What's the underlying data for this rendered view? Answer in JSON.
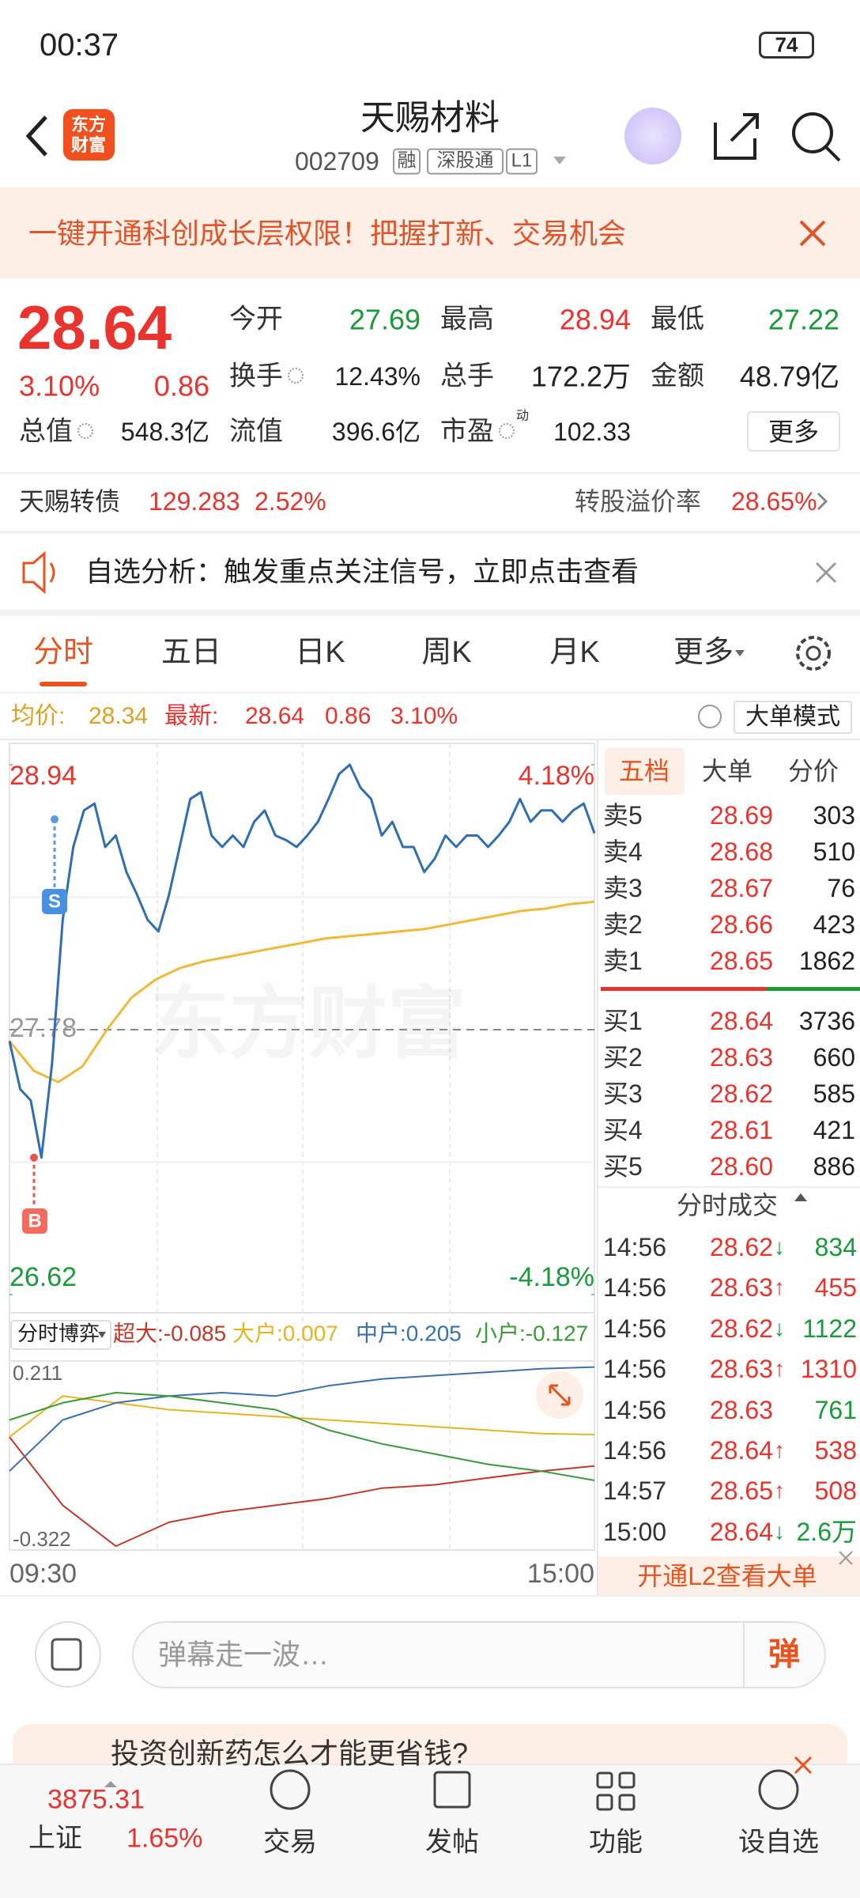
{
  "status_bar": {
    "time": "00:37",
    "battery": "74"
  },
  "header": {
    "logo": [
      "东方",
      "财富"
    ],
    "title": "天赐材料",
    "code": "002709",
    "tags": [
      "融",
      "深股通",
      "L1"
    ]
  },
  "banner": {
    "text": "一键开通科创成长层权限！把握打新、交易机会"
  },
  "quote": {
    "price": "28.64",
    "change_pct": "3.10%",
    "change": "0.86",
    "more": "更多",
    "fields": [
      {
        "label": "今开",
        "value": "27.69",
        "tone": "down"
      },
      {
        "label": "最高",
        "value": "28.94",
        "tone": "up"
      },
      {
        "label": "最低",
        "value": "27.22",
        "tone": "down"
      },
      {
        "label": "换手",
        "value": "12.43%"
      },
      {
        "label": "总手",
        "value": "172.2万"
      },
      {
        "label": "金额",
        "value": "48.79亿"
      },
      {
        "label": "总值",
        "value": "548.3亿"
      },
      {
        "label": "流值",
        "value": "396.6亿"
      },
      {
        "label": "市盈",
        "superscript": "动",
        "value": "102.33"
      }
    ]
  },
  "bond": {
    "name": "天赐转债",
    "price": "129.283",
    "change_pct": "2.52%",
    "premium_label": "转股溢价率",
    "premium": "28.65%"
  },
  "notice": {
    "text": "自选分析：触发重点关注信号，立即点击查看"
  },
  "tabs": {
    "items": [
      "分时",
      "五日",
      "日K",
      "周K",
      "月K",
      "更多"
    ],
    "active": 0
  },
  "info": {
    "mode_button": "大单模式"
  },
  "intraday": {
    "type": "line",
    "watermark": "东方财富",
    "markers": [
      "S",
      "B"
    ],
    "ylim": [
      26.62,
      28.94
    ],
    "yticks": [
      26.62,
      27.78,
      28.94
    ],
    "y2lim": [
      -4.18,
      4.18
    ],
    "y2ticks": [
      {
        "value": -4.18,
        "label": "-4.18%"
      },
      {
        "value": 4.18,
        "label": "4.18%"
      }
    ],
    "xlabels": [
      "09:30",
      "15:00"
    ],
    "series": [
      {
        "name": "均价:",
        "color": "#f0b93a",
        "value_label": "28.34",
        "values": [
          27.73,
          27.6,
          27.55,
          27.62,
          27.78,
          27.92,
          28.0,
          28.05,
          28.08,
          28.1,
          28.12,
          28.14,
          28.16,
          28.18,
          28.19,
          28.2,
          28.21,
          28.22,
          28.24,
          28.26,
          28.28,
          28.3,
          28.31,
          28.33,
          28.34
        ]
      },
      {
        "name": "最新:",
        "color": "#2f6db5",
        "value_label": "28.64",
        "values": [
          27.73,
          27.52,
          27.47,
          27.22,
          27.63,
          28.26,
          28.58,
          28.74,
          28.77,
          28.58,
          28.63,
          28.47,
          28.37,
          28.26,
          28.21,
          28.37,
          28.58,
          28.79,
          28.82,
          28.63,
          28.58,
          28.63,
          28.58,
          28.69,
          28.74,
          28.63,
          28.61,
          28.58,
          28.63,
          28.69,
          28.79,
          28.9,
          28.94,
          28.84,
          28.79,
          28.63,
          28.69,
          28.58,
          28.58,
          28.47,
          28.53,
          28.63,
          28.58,
          28.63,
          28.63,
          28.58,
          28.63,
          28.69,
          28.79,
          28.69,
          28.74,
          28.74,
          28.69,
          28.74,
          28.77,
          28.64
        ]
      }
    ]
  },
  "fund_flow": {
    "type": "line",
    "selector": "分时博弈",
    "ylim": [
      -0.322,
      0.211
    ],
    "series": [
      {
        "legend": "超大:-0.085",
        "color": "#c0392b",
        "values": [
          0.0,
          -0.2,
          -0.32,
          -0.25,
          -0.22,
          -0.2,
          -0.18,
          -0.15,
          -0.14,
          -0.12,
          -0.1,
          -0.085
        ]
      },
      {
        "legend": "大户:0.007",
        "color": "#e6b422",
        "values": [
          0.0,
          0.12,
          0.1,
          0.08,
          0.07,
          0.06,
          0.05,
          0.04,
          0.03,
          0.02,
          0.01,
          0.007
        ]
      },
      {
        "legend": "中户:0.205",
        "color": "#3a6fb0",
        "values": [
          -0.1,
          0.05,
          0.1,
          0.12,
          0.13,
          0.12,
          0.15,
          0.17,
          0.18,
          0.19,
          0.2,
          0.205
        ]
      },
      {
        "legend": "小户:-0.127",
        "color": "#3a9a3a",
        "values": [
          0.05,
          0.1,
          0.13,
          0.12,
          0.1,
          0.08,
          0.02,
          -0.02,
          -0.05,
          -0.08,
          -0.1,
          -0.127
        ]
      }
    ]
  },
  "order_book": {
    "tabs": [
      "五档",
      "大单",
      "分价"
    ],
    "active_tab": 0,
    "asks": [
      {
        "label": "卖5",
        "price": "28.69",
        "volume": "303"
      },
      {
        "label": "卖4",
        "price": "28.68",
        "volume": "510"
      },
      {
        "label": "卖3",
        "price": "28.67",
        "volume": "76"
      },
      {
        "label": "卖2",
        "price": "28.66",
        "volume": "423"
      },
      {
        "label": "卖1",
        "price": "28.65",
        "volume": "1862"
      }
    ],
    "bids": [
      {
        "label": "买1",
        "price": "28.64",
        "volume": "3736"
      },
      {
        "label": "买2",
        "price": "28.63",
        "volume": "660"
      },
      {
        "label": "买3",
        "price": "28.62",
        "volume": "585"
      },
      {
        "label": "买4",
        "price": "28.61",
        "volume": "421"
      },
      {
        "label": "买5",
        "price": "28.60",
        "volume": "886"
      }
    ]
  },
  "trades": {
    "title": "分时成交",
    "l2_button": "开通L2查看大单",
    "rows": [
      {
        "time": "14:56",
        "price": "28.62",
        "arrow": "↓",
        "volume": "834",
        "side": "sell"
      },
      {
        "time": "14:56",
        "price": "28.63",
        "arrow": "↑",
        "volume": "455",
        "side": "buy"
      },
      {
        "time": "14:56",
        "price": "28.62",
        "arrow": "↓",
        "volume": "1122",
        "side": "sell"
      },
      {
        "time": "14:56",
        "price": "28.63",
        "arrow": "↑",
        "volume": "1310",
        "side": "buy"
      },
      {
        "time": "14:56",
        "price": "28.63",
        "volume": "761",
        "side": "sell"
      },
      {
        "time": "14:56",
        "price": "28.64",
        "arrow": "↑",
        "volume": "538",
        "side": "buy"
      },
      {
        "time": "14:57",
        "price": "28.65",
        "arrow": "↑",
        "volume": "508",
        "side": "buy"
      },
      {
        "time": "15:00",
        "price": "28.64",
        "arrow": "↓",
        "volume": "2.6万",
        "side": "sell"
      }
    ]
  },
  "comment": {
    "placeholder": "弹幕走一波…",
    "button": "弹"
  },
  "ad": {
    "text": "投资创新药怎么才能更省钱?"
  },
  "nav": {
    "index_value": "3875.31",
    "index_name": "上证",
    "index_change": "1.65%",
    "items": [
      "交易",
      "发帖",
      "功能",
      "设自选"
    ]
  }
}
